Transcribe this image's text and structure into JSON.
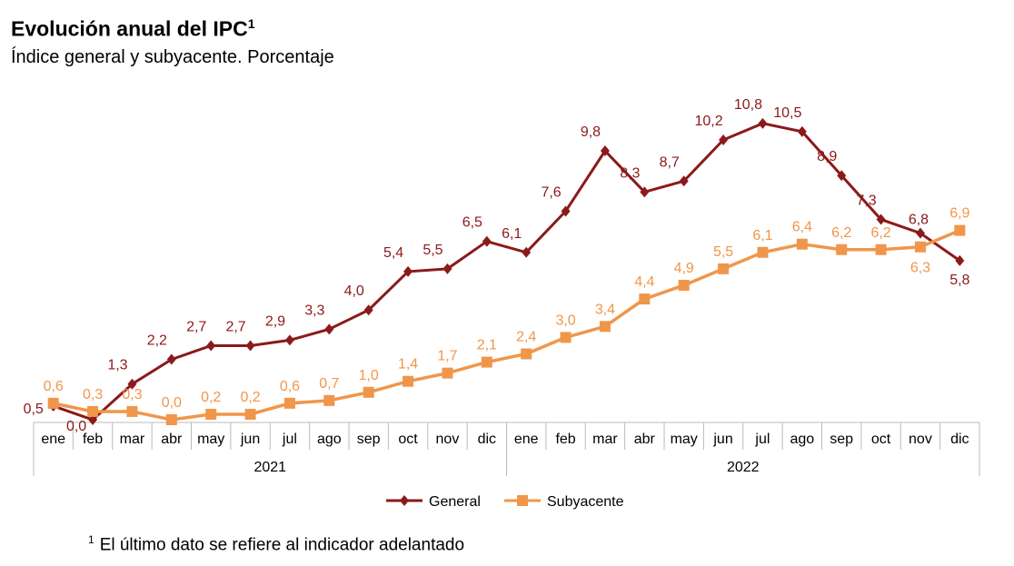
{
  "title": "Evolución anual del IPC",
  "title_sup": "1",
  "subtitle": "Índice general y subyacente. Porcentaje",
  "footnote_mark": "1",
  "footnote": "El último dato se refiere al indicador adelantado",
  "chart_data": {
    "type": "line",
    "title": "Evolución anual del IPC",
    "subtitle": "Índice general y subyacente. Porcentaje",
    "categories": [
      "ene",
      "feb",
      "mar",
      "abr",
      "may",
      "jun",
      "jul",
      "ago",
      "sep",
      "oct",
      "nov",
      "dic",
      "ene",
      "feb",
      "mar",
      "abr",
      "may",
      "jun",
      "jul",
      "ago",
      "sep",
      "oct",
      "nov",
      "dic"
    ],
    "groups": [
      {
        "label": "2021",
        "count": 12
      },
      {
        "label": "2022",
        "count": 12
      }
    ],
    "ylim": [
      0,
      11
    ],
    "grid": false,
    "legend_position": "bottom",
    "series": [
      {
        "name": "General",
        "color": "#8b1a1a",
        "marker": "diamond",
        "values": [
          0.5,
          0.0,
          1.3,
          2.2,
          2.7,
          2.7,
          2.9,
          3.3,
          4.0,
          5.4,
          5.5,
          6.5,
          6.1,
          7.6,
          9.8,
          8.3,
          8.7,
          10.2,
          10.8,
          10.5,
          8.9,
          7.3,
          6.8,
          5.8
        ]
      },
      {
        "name": "Subyacente",
        "color": "#f0964a",
        "marker": "square",
        "values": [
          0.6,
          0.3,
          0.3,
          0.0,
          0.2,
          0.2,
          0.6,
          0.7,
          1.0,
          1.4,
          1.7,
          2.1,
          2.4,
          3.0,
          3.4,
          4.4,
          4.9,
          5.5,
          6.1,
          6.4,
          6.2,
          6.2,
          6.3,
          6.9
        ]
      }
    ]
  }
}
